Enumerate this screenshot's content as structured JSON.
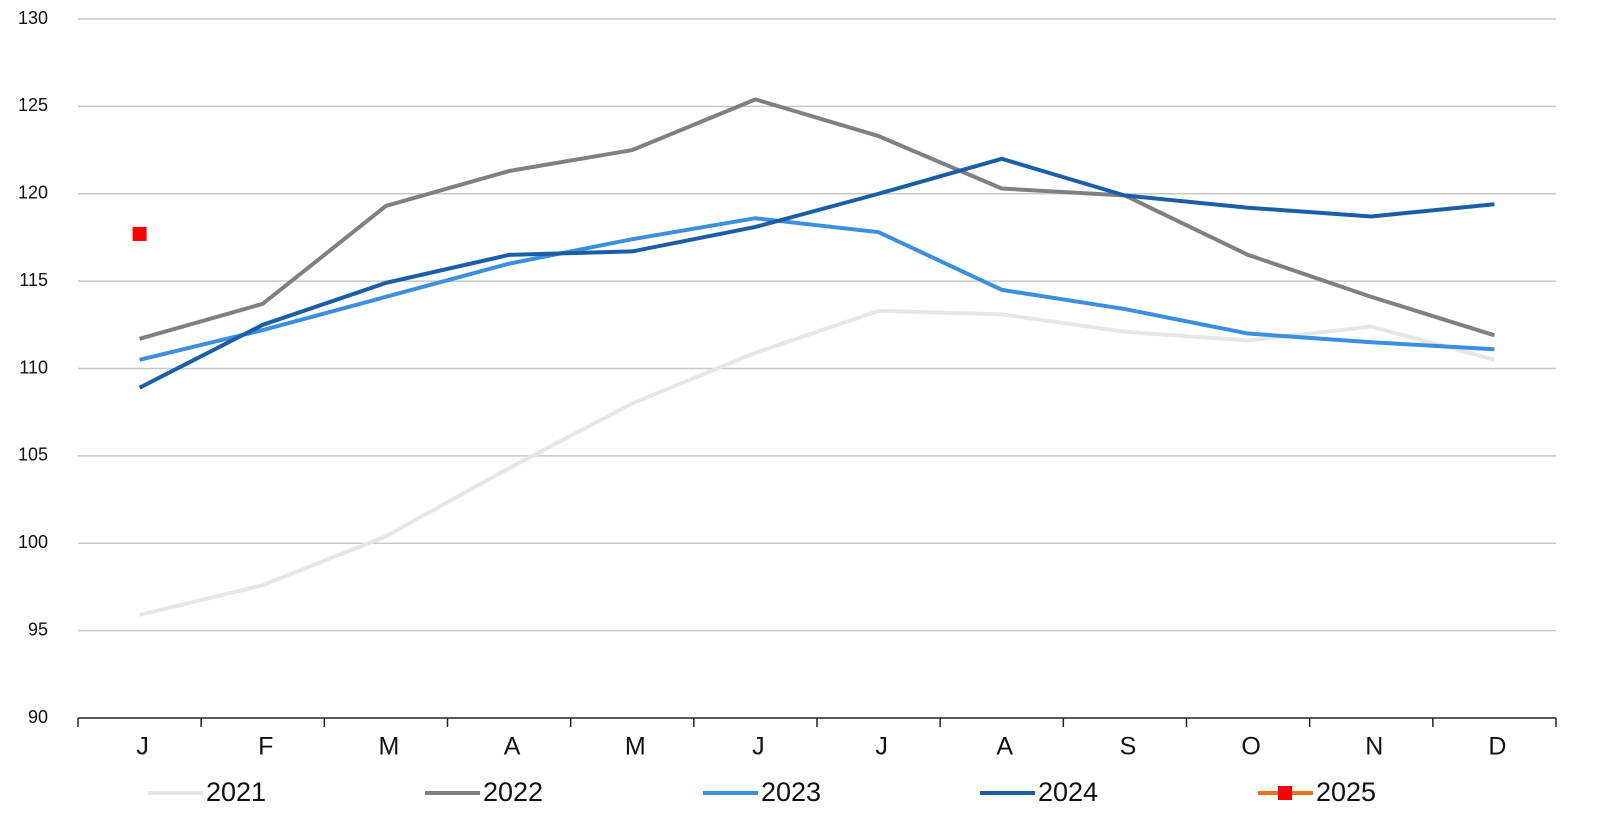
{
  "chart_data": {
    "type": "line",
    "categories": [
      "J",
      "F",
      "M",
      "A",
      "M",
      "J",
      "J",
      "A",
      "S",
      "O",
      "N",
      "D"
    ],
    "series": [
      {
        "name": "2021",
        "color": "#e6e6e6",
        "values": [
          95.9,
          97.6,
          100.4,
          104.3,
          108.0,
          110.9,
          113.3,
          113.1,
          112.1,
          111.6,
          112.4,
          110.5
        ]
      },
      {
        "name": "2022",
        "color": "#808080",
        "values": [
          111.7,
          113.7,
          119.3,
          121.3,
          122.5,
          125.4,
          123.3,
          120.3,
          119.9,
          116.5,
          114.1,
          111.9
        ]
      },
      {
        "name": "2023",
        "color": "#3b8fe0",
        "values": [
          110.5,
          112.2,
          114.1,
          116.0,
          117.4,
          118.6,
          117.8,
          114.5,
          113.4,
          112.0,
          111.5,
          111.1
        ]
      },
      {
        "name": "2024",
        "color": "#1a5ea8",
        "values": [
          108.9,
          112.5,
          114.9,
          116.5,
          116.7,
          118.1,
          120.0,
          122.0,
          119.9,
          119.2,
          118.7,
          119.4
        ]
      },
      {
        "name": "2025",
        "color": "#ff0000",
        "line_color": "#f07020",
        "marker": "square",
        "values": [
          117.7,
          null,
          null,
          null,
          null,
          null,
          null,
          null,
          null,
          null,
          null,
          null
        ]
      }
    ],
    "ylim": [
      90,
      130
    ],
    "yticks": [
      90,
      95,
      100,
      105,
      110,
      115,
      120,
      125,
      130
    ],
    "grid": true,
    "legend": "bottom"
  }
}
